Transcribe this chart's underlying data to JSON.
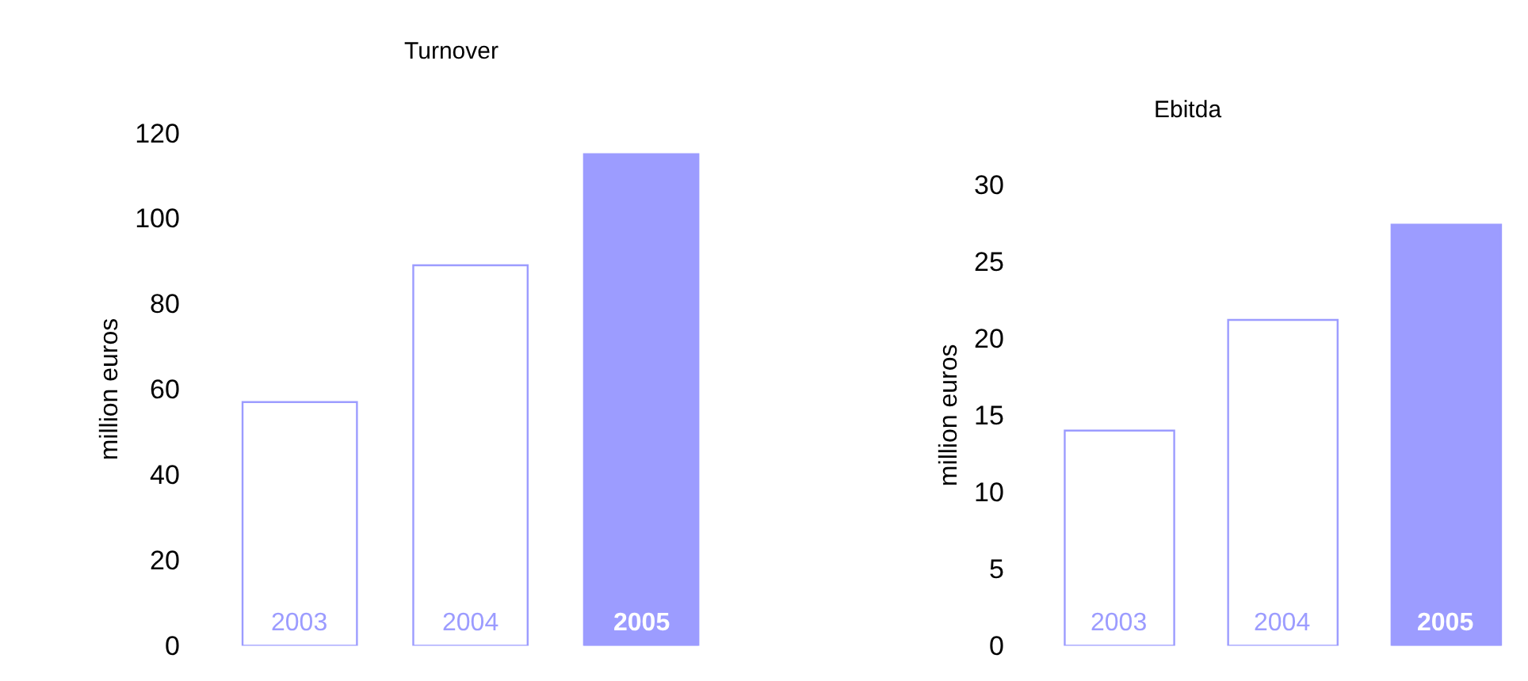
{
  "chart_data": [
    {
      "type": "bar",
      "title": "Turnover",
      "ylabel": "million euros",
      "categories": [
        "2003",
        "2004",
        "2005"
      ],
      "values": [
        57,
        89,
        115
      ],
      "colors": [
        "#ffffff",
        "#ffffff",
        "#9c9cff"
      ],
      "ylim": [
        0,
        120
      ],
      "yticks": [
        0,
        20,
        40,
        60,
        80,
        100,
        120
      ]
    },
    {
      "type": "bar",
      "title": "Ebitda",
      "ylabel": "million euros",
      "categories": [
        "2003",
        "2004",
        "2005"
      ],
      "values": [
        14,
        21.2,
        27.4
      ],
      "colors": [
        "#ffffff",
        "#ffffff",
        "#9c9cff"
      ],
      "ylim": [
        0,
        30
      ],
      "yticks": [
        0,
        5,
        10,
        15,
        20,
        25,
        30
      ]
    }
  ]
}
